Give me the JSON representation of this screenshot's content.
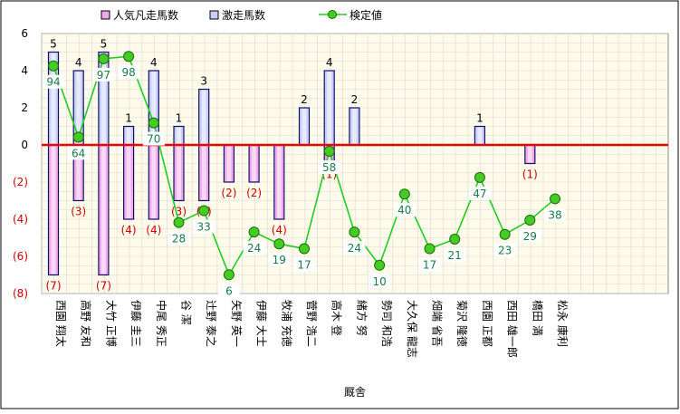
{
  "chart_data": {
    "type": "bar",
    "xlabel": "厩舎",
    "ylim": [
      -8,
      6
    ],
    "yticks": [
      {
        "value": 6,
        "label": "6"
      },
      {
        "value": 4,
        "label": "4"
      },
      {
        "value": 2,
        "label": "2"
      },
      {
        "value": 0,
        "label": "0"
      },
      {
        "value": -2,
        "label": "(2)"
      },
      {
        "value": -4,
        "label": "(4)"
      },
      {
        "value": -6,
        "label": "(6)"
      },
      {
        "value": -8,
        "label": "(8)"
      }
    ],
    "grid": true,
    "legend_position": "top",
    "categories": [
      "西園 翔太",
      "高野 友和",
      "大竹 正博",
      "伊藤 圭三",
      "中尾 秀正",
      "谷 潔",
      "辻野 泰之",
      "矢野 英一",
      "伊藤 大士",
      "牧浦 充徳",
      "菅野 浩二",
      "高木 登",
      "緒方 努",
      "勢司 和浩",
      "大久保 龍志",
      "畑端 省吾",
      "菊沢 隆徳",
      "西園 正都",
      "西田 雄一郎",
      "橋田 満",
      "松永 康利"
    ],
    "series": [
      {
        "name": "人気凡走馬数",
        "color": "#f0a8e8",
        "values": [
          -7,
          -3,
          -7,
          -4,
          -4,
          -3,
          -3,
          -2,
          -2,
          -4,
          0,
          -1,
          0,
          0,
          0,
          0,
          0,
          0,
          0,
          -1,
          0
        ],
        "labels": [
          "(7)",
          "(3)",
          "(7)",
          "(4)",
          "(4)",
          "(3)",
          "(3)",
          "(2)",
          "(2)",
          "(4)",
          "",
          "(1)",
          "",
          "",
          "",
          "",
          "",
          "",
          "",
          "(1)",
          ""
        ]
      },
      {
        "name": "激走馬数",
        "color": "#c8d0f8",
        "values": [
          5,
          4,
          5,
          1,
          4,
          1,
          3,
          0,
          0,
          0,
          2,
          4,
          2,
          0,
          0,
          0,
          0,
          1,
          0,
          0,
          0
        ],
        "labels": [
          "5",
          "4",
          "5",
          "1",
          "4",
          "1",
          "3",
          "",
          "",
          "",
          "2",
          "4",
          "2",
          "",
          "",
          "",
          "",
          "1",
          "",
          "",
          ""
        ]
      },
      {
        "name": "検定値",
        "color": "#22cc22",
        "values": [
          94,
          64,
          97,
          98,
          70,
          28,
          33,
          6,
          24,
          19,
          17,
          58,
          24,
          10,
          40,
          17,
          21,
          47,
          23,
          29,
          38
        ]
      }
    ]
  }
}
